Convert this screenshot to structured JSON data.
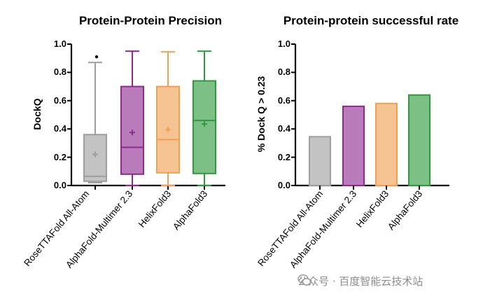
{
  "chart_data": [
    {
      "type": "box",
      "title": "Protein-Protein Precision",
      "xlabel": "",
      "ylabel": "DockQ",
      "ylim": [
        0,
        1.0
      ],
      "yticks": [
        "0.0",
        "0.2",
        "0.4",
        "0.6",
        "0.8",
        "1.0"
      ],
      "categories": [
        "RoseTTAFold All-Atom",
        "AlphaFold-Multimer 2.3",
        "HelixFold3",
        "AlphaFold3"
      ],
      "series": [
        {
          "name": "RoseTTAFold All-Atom",
          "whisker_low": 0.02,
          "q1": 0.03,
          "median": 0.065,
          "q3": 0.36,
          "whisker_high": 0.87,
          "mean": 0.22,
          "outliers": [
            0.91
          ],
          "color": "#9e9e9e"
        },
        {
          "name": "AlphaFold-Multimer 2.3",
          "whisker_low": 0.0,
          "q1": 0.08,
          "median": 0.27,
          "q3": 0.7,
          "whisker_high": 0.95,
          "mean": 0.375,
          "outliers": [],
          "color": "#8e2a8e"
        },
        {
          "name": "HelixFold3",
          "whisker_low": 0.0,
          "q1": 0.09,
          "median": 0.325,
          "q3": 0.7,
          "whisker_high": 0.945,
          "mean": 0.395,
          "outliers": [],
          "color": "#f0a050"
        },
        {
          "name": "AlphaFold3",
          "whisker_low": 0.0,
          "q1": 0.085,
          "median": 0.46,
          "q3": 0.74,
          "whisker_high": 0.95,
          "mean": 0.435,
          "outliers": [],
          "color": "#2e9a3c"
        }
      ]
    },
    {
      "type": "bar",
      "title": "Protein-protein successful rate",
      "xlabel": "",
      "ylabel": "% Dock Q > 0.23",
      "ylim": [
        0,
        1.0
      ],
      "yticks": [
        "0.0",
        "0.2",
        "0.4",
        "0.6",
        "0.8",
        "1.0"
      ],
      "categories": [
        "RoseTTAFold All-Atom",
        "AlphaFold-Multimer 2.3",
        "HelixFold3",
        "AlphaFold3"
      ],
      "values": [
        0.345,
        0.56,
        0.58,
        0.64
      ],
      "colors": [
        "#9e9e9e",
        "#8e2a8e",
        "#f0a050",
        "#2e9a3c"
      ]
    }
  ],
  "watermark": {
    "text": "公众号 · 百度智能云技术站",
    "icon": "wechat-icon"
  }
}
